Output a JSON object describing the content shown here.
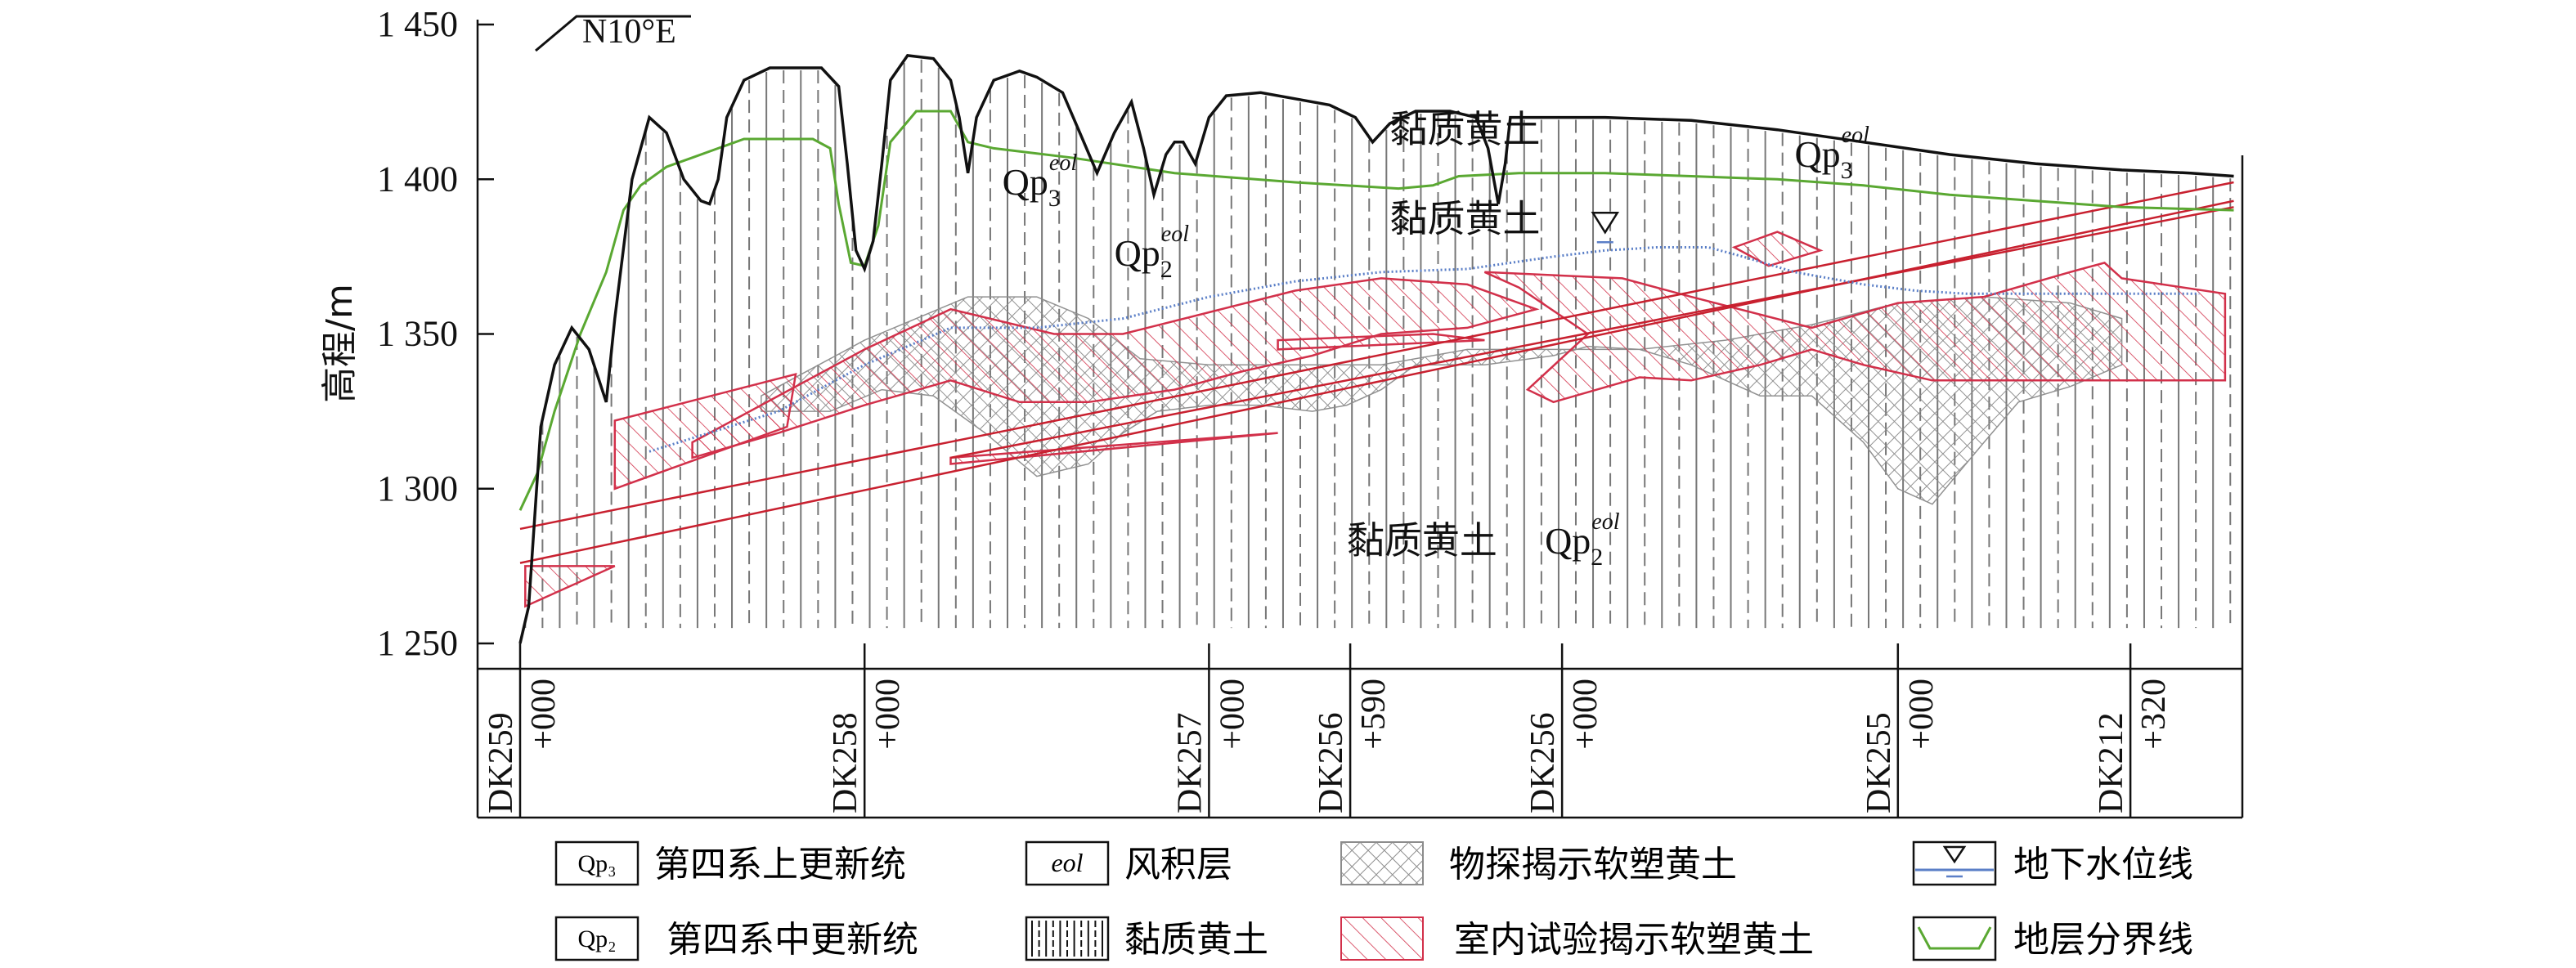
{
  "chart_data": {
    "type": "geological-profile",
    "title": "",
    "direction": "N10°E",
    "ylabel": "高程/m",
    "ylim": [
      1250,
      1450
    ],
    "yticks": [
      "1 250",
      "1 300",
      "1 350",
      "1 400",
      "1 450"
    ],
    "ytick_values": [
      1250,
      1300,
      1350,
      1400,
      1450
    ],
    "stations": [
      {
        "name": "DK259",
        "offset": "+000"
      },
      {
        "name": "DK258",
        "offset": "+000"
      },
      {
        "name": "DK257",
        "offset": "+000"
      },
      {
        "name": "DK256",
        "offset": "+590"
      },
      {
        "name": "DK256",
        "offset": "+000"
      },
      {
        "name": "DK255",
        "offset": "+000"
      },
      {
        "name": "DK212",
        "offset": "+320"
      }
    ],
    "station_positions": [
      0,
      2.0,
      4.0,
      4.82,
      6.05,
      8.0,
      9.35
    ],
    "x_extent": [
      0,
      10
    ],
    "ground_surface": [
      [
        0,
        1250
      ],
      [
        0.05,
        1262
      ],
      [
        0.12,
        1320
      ],
      [
        0.2,
        1340
      ],
      [
        0.3,
        1352
      ],
      [
        0.4,
        1345
      ],
      [
        0.5,
        1328
      ],
      [
        0.55,
        1355
      ],
      [
        0.65,
        1400
      ],
      [
        0.75,
        1420
      ],
      [
        0.85,
        1415
      ],
      [
        0.95,
        1400
      ],
      [
        1.05,
        1393
      ],
      [
        1.1,
        1392
      ],
      [
        1.15,
        1400
      ],
      [
        1.2,
        1420
      ],
      [
        1.3,
        1432
      ],
      [
        1.45,
        1436
      ],
      [
        1.6,
        1436
      ],
      [
        1.75,
        1436
      ],
      [
        1.85,
        1430
      ],
      [
        1.9,
        1405
      ],
      [
        1.95,
        1377
      ],
      [
        2.0,
        1371
      ],
      [
        2.05,
        1380
      ],
      [
        2.1,
        1405
      ],
      [
        2.15,
        1432
      ],
      [
        2.25,
        1440
      ],
      [
        2.4,
        1439
      ],
      [
        2.5,
        1432
      ],
      [
        2.55,
        1420
      ],
      [
        2.6,
        1402
      ],
      [
        2.65,
        1420
      ],
      [
        2.75,
        1432
      ],
      [
        2.9,
        1435
      ],
      [
        3.0,
        1433
      ],
      [
        3.15,
        1428
      ],
      [
        3.25,
        1415
      ],
      [
        3.35,
        1402
      ],
      [
        3.45,
        1415
      ],
      [
        3.55,
        1425
      ],
      [
        3.62,
        1410
      ],
      [
        3.68,
        1395
      ],
      [
        3.75,
        1408
      ],
      [
        3.8,
        1412
      ],
      [
        3.85,
        1412
      ],
      [
        3.92,
        1405
      ],
      [
        4.0,
        1420
      ],
      [
        4.1,
        1427
      ],
      [
        4.3,
        1428
      ],
      [
        4.5,
        1426
      ],
      [
        4.7,
        1424
      ],
      [
        4.85,
        1420
      ],
      [
        4.95,
        1412
      ],
      [
        5.05,
        1418
      ],
      [
        5.2,
        1422
      ],
      [
        5.4,
        1422
      ],
      [
        5.55,
        1420
      ],
      [
        5.62,
        1410
      ],
      [
        5.68,
        1392
      ],
      [
        5.72,
        1405
      ],
      [
        5.75,
        1420
      ],
      [
        5.9,
        1420
      ],
      [
        6.3,
        1420
      ],
      [
        6.8,
        1419
      ],
      [
        7.3,
        1416
      ],
      [
        7.8,
        1412
      ],
      [
        8.3,
        1408
      ],
      [
        8.8,
        1405
      ],
      [
        9.3,
        1403
      ],
      [
        9.7,
        1402
      ],
      [
        9.95,
        1401
      ]
    ],
    "strata_boundary": [
      [
        0,
        1293
      ],
      [
        0.1,
        1305
      ],
      [
        0.2,
        1325
      ],
      [
        0.35,
        1350
      ],
      [
        0.5,
        1370
      ],
      [
        0.6,
        1390
      ],
      [
        0.7,
        1398
      ],
      [
        0.85,
        1404
      ],
      [
        1.0,
        1407
      ],
      [
        1.15,
        1410
      ],
      [
        1.3,
        1413
      ],
      [
        1.5,
        1413
      ],
      [
        1.7,
        1413
      ],
      [
        1.8,
        1410
      ],
      [
        1.85,
        1392
      ],
      [
        1.92,
        1373
      ],
      [
        2.0,
        1372
      ],
      [
        2.08,
        1385
      ],
      [
        2.15,
        1412
      ],
      [
        2.3,
        1422
      ],
      [
        2.5,
        1422
      ],
      [
        2.6,
        1412
      ],
      [
        2.75,
        1410
      ],
      [
        3.2,
        1407
      ],
      [
        3.8,
        1402
      ],
      [
        4.5,
        1399
      ],
      [
        5.1,
        1397
      ],
      [
        5.3,
        1398
      ],
      [
        5.45,
        1401
      ],
      [
        5.8,
        1402
      ],
      [
        6.3,
        1402
      ],
      [
        6.8,
        1401
      ],
      [
        7.3,
        1400
      ],
      [
        7.8,
        1398
      ],
      [
        8.3,
        1395
      ],
      [
        8.8,
        1393
      ],
      [
        9.3,
        1391
      ],
      [
        9.95,
        1390
      ]
    ],
    "water_table": [
      [
        0.75,
        1312
      ],
      [
        1.5,
        1325
      ],
      [
        2.0,
        1340
      ],
      [
        2.5,
        1352
      ],
      [
        3.0,
        1352
      ],
      [
        3.5,
        1355
      ],
      [
        4.0,
        1362
      ],
      [
        4.5,
        1367
      ],
      [
        5.0,
        1370
      ],
      [
        5.5,
        1371
      ],
      [
        6.0,
        1375
      ],
      [
        6.3,
        1377
      ],
      [
        6.6,
        1378
      ],
      [
        6.9,
        1378
      ],
      [
        7.1,
        1375
      ],
      [
        7.4,
        1370
      ],
      [
        7.8,
        1366
      ],
      [
        8.1,
        1364
      ],
      [
        8.4,
        1363
      ],
      [
        8.8,
        1363
      ],
      [
        9.2,
        1363
      ],
      [
        9.75,
        1363
      ]
    ],
    "water_table_marker": {
      "x": 6.3,
      "y": 1377
    },
    "fault_lines": [
      [
        [
          0,
          1287
        ],
        [
          9.95,
          1399
        ]
      ],
      [
        [
          0,
          1276
        ],
        [
          9.95,
          1393
        ]
      ],
      [
        [
          2.5,
          1310
        ],
        [
          9.95,
          1391
        ]
      ]
    ],
    "geophysical_soft_loess_zones": [
      [
        [
          1.4,
          1330
        ],
        [
          2.0,
          1348
        ],
        [
          2.6,
          1362
        ],
        [
          3.0,
          1362
        ],
        [
          3.3,
          1355
        ],
        [
          3.6,
          1342
        ],
        [
          4.0,
          1340
        ],
        [
          4.5,
          1340
        ],
        [
          5.0,
          1340
        ],
        [
          5.5,
          1345
        ],
        [
          6.0,
          1345
        ],
        [
          6.5,
          1345
        ],
        [
          7.0,
          1348
        ],
        [
          7.5,
          1353
        ],
        [
          8.0,
          1360
        ],
        [
          8.5,
          1362
        ],
        [
          9.0,
          1360
        ],
        [
          9.3,
          1355
        ],
        [
          9.3,
          1340
        ],
        [
          9.0,
          1333
        ],
        [
          8.7,
          1328
        ],
        [
          8.5,
          1315
        ],
        [
          8.2,
          1295
        ],
        [
          8.0,
          1300
        ],
        [
          7.8,
          1315
        ],
        [
          7.5,
          1330
        ],
        [
          7.2,
          1330
        ],
        [
          6.8,
          1340
        ],
        [
          6.5,
          1345
        ],
        [
          6.2,
          1346
        ],
        [
          6.0,
          1343
        ],
        [
          5.6,
          1340
        ],
        [
          5.2,
          1340
        ],
        [
          5.0,
          1332
        ],
        [
          4.8,
          1327
        ],
        [
          4.6,
          1325
        ],
        [
          4.3,
          1327
        ],
        [
          4.0,
          1327
        ],
        [
          3.7,
          1325
        ],
        [
          3.5,
          1318
        ],
        [
          3.3,
          1308
        ],
        [
          3.0,
          1304
        ],
        [
          2.7,
          1318
        ],
        [
          2.4,
          1330
        ],
        [
          2.1,
          1332
        ],
        [
          1.8,
          1325
        ],
        [
          1.4,
          1325
        ]
      ]
    ],
    "lab_soft_loess_zones": [
      [
        [
          0.55,
          1322
        ],
        [
          1.6,
          1337
        ],
        [
          1.55,
          1320
        ],
        [
          0.55,
          1300
        ]
      ],
      [
        [
          1.0,
          1315
        ],
        [
          2.0,
          1345
        ],
        [
          2.5,
          1358
        ],
        [
          3.1,
          1350
        ],
        [
          3.5,
          1350
        ],
        [
          4.0,
          1357
        ],
        [
          4.5,
          1364
        ],
        [
          5.0,
          1368
        ],
        [
          5.5,
          1366
        ],
        [
          5.9,
          1358
        ],
        [
          5.5,
          1352
        ],
        [
          5.0,
          1350
        ],
        [
          4.6,
          1343
        ],
        [
          4.2,
          1338
        ],
        [
          3.8,
          1332
        ],
        [
          3.3,
          1328
        ],
        [
          2.9,
          1328
        ],
        [
          2.5,
          1335
        ],
        [
          2.0,
          1327
        ],
        [
          1.5,
          1318
        ],
        [
          1.0,
          1310
        ]
      ],
      [
        [
          2.5,
          1310
        ],
        [
          4.4,
          1318
        ],
        [
          2.5,
          1308
        ]
      ],
      [
        [
          4.4,
          1348
        ],
        [
          5.3,
          1350
        ],
        [
          5.6,
          1348
        ],
        [
          4.4,
          1345
        ]
      ],
      [
        [
          5.6,
          1370
        ],
        [
          6.4,
          1368
        ],
        [
          6.8,
          1362
        ],
        [
          7.5,
          1352
        ],
        [
          8.0,
          1360
        ],
        [
          8.5,
          1362
        ],
        [
          9.0,
          1370
        ],
        [
          9.2,
          1373
        ],
        [
          9.3,
          1368
        ],
        [
          9.9,
          1363
        ],
        [
          9.9,
          1335
        ],
        [
          9.3,
          1335
        ],
        [
          8.8,
          1335
        ],
        [
          8.2,
          1335
        ],
        [
          7.8,
          1340
        ],
        [
          7.5,
          1345
        ],
        [
          7.2,
          1340
        ],
        [
          6.8,
          1335
        ],
        [
          6.5,
          1336
        ],
        [
          6.0,
          1328
        ],
        [
          5.85,
          1332
        ],
        [
          6.2,
          1350
        ],
        [
          5.8,
          1365
        ]
      ],
      [
        [
          7.05,
          1378
        ],
        [
          7.3,
          1383
        ],
        [
          7.55,
          1377
        ],
        [
          7.25,
          1372
        ]
      ],
      [
        [
          0.03,
          1275
        ],
        [
          0.55,
          1275
        ],
        [
          0.03,
          1262
        ]
      ]
    ],
    "annotations": [
      {
        "text": "黏质黄土",
        "x": 5.05,
        "y": 1412
      },
      {
        "text": "黏质黄土",
        "x": 5.05,
        "y": 1383
      },
      {
        "text": "黏质黄土",
        "x": 4.8,
        "y": 1279
      },
      {
        "text": "Qp",
        "sub": "3",
        "sup": "eol",
        "x": 2.8,
        "y": 1395
      },
      {
        "text": "Qp",
        "sub": "2",
        "sup": "eol",
        "x": 3.45,
        "y": 1372
      },
      {
        "text": "Qp",
        "sub": "3",
        "sup": "eol",
        "x": 7.4,
        "y": 1404
      },
      {
        "text": "Qp",
        "sub": "2",
        "sup": "eol",
        "x": 5.95,
        "y": 1279
      }
    ]
  },
  "legend": [
    {
      "key": "qp3",
      "symbol": "Qp₃",
      "label": "第四系上更新统"
    },
    {
      "key": "eol",
      "symbol": "eol",
      "label": "风积层"
    },
    {
      "key": "geo",
      "symbol": "",
      "label": "物探揭示软塑黄土"
    },
    {
      "key": "water",
      "symbol": "",
      "label": "地下水位线"
    },
    {
      "key": "qp2",
      "symbol": "Qp₂",
      "label": "第四系中更新统"
    },
    {
      "key": "clay",
      "symbol": "",
      "label": "黏质黄土"
    },
    {
      "key": "lab",
      "symbol": "",
      "label": "室内试验揭示软塑黄土"
    },
    {
      "key": "boundary",
      "symbol": "",
      "label": "地层分界线"
    }
  ],
  "colors": {
    "ground": "#111111",
    "strata_boundary": "#5aa832",
    "water_table": "#5b7fc7",
    "fault": "#c8202f",
    "lab_zone": "#d2304a",
    "geo_zone": "#8c8c8c"
  }
}
